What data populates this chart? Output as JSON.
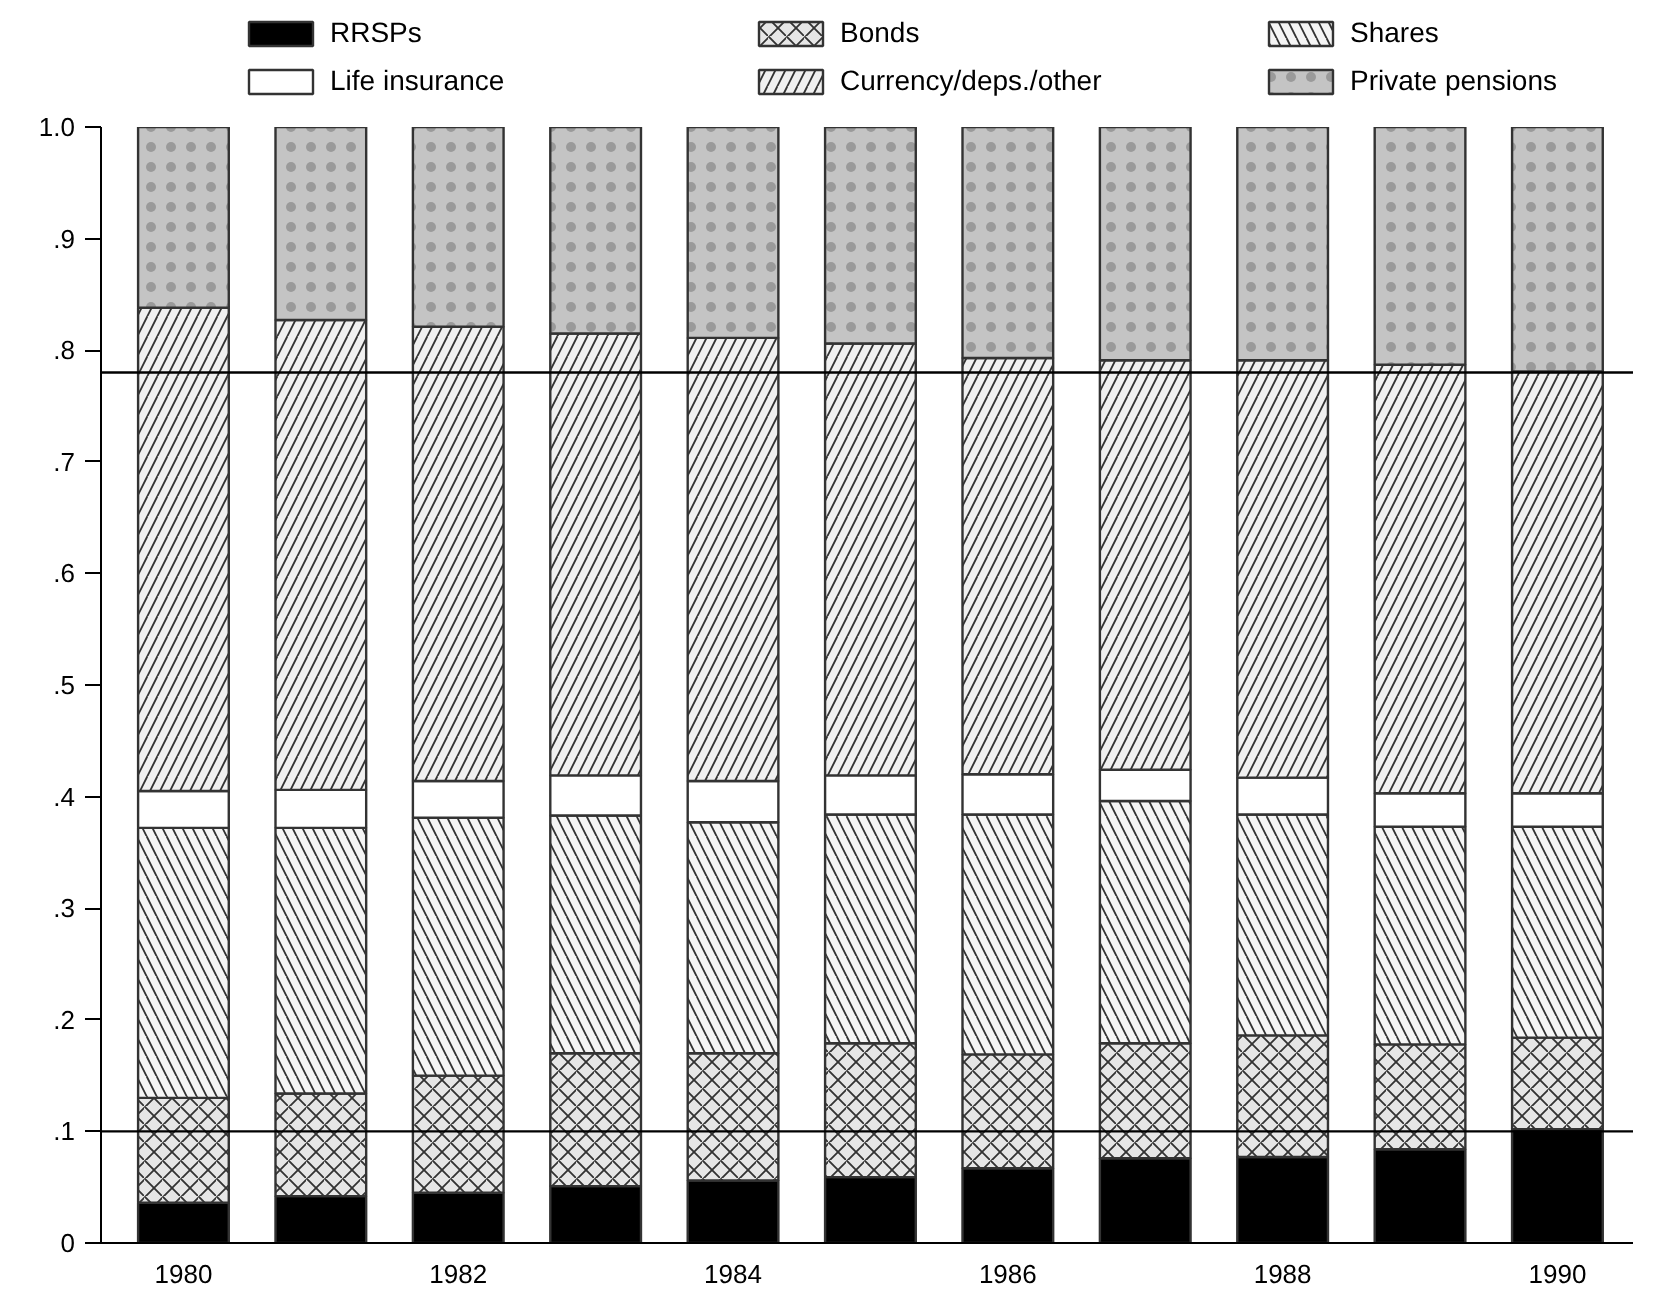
{
  "chart_data": {
    "type": "bar",
    "stacked": true,
    "categories": [
      "1980",
      null,
      "1982",
      null,
      "1984",
      null,
      "1986",
      null,
      "1988",
      null,
      "1990"
    ],
    "series": [
      {
        "name": "RRSPs",
        "color": "#000000",
        "values": [
          0.036,
          0.042,
          0.045,
          0.051,
          0.056,
          0.059,
          0.067,
          0.076,
          0.077,
          0.084,
          0.102
        ]
      },
      {
        "name": "Bonds",
        "color": "#e6e6e6",
        "values": [
          0.094,
          0.092,
          0.105,
          0.119,
          0.114,
          0.12,
          0.102,
          0.103,
          0.109,
          0.094,
          0.082
        ]
      },
      {
        "name": "Shares",
        "color": "#f5f5f5",
        "values": [
          0.242,
          0.238,
          0.231,
          0.213,
          0.207,
          0.205,
          0.215,
          0.217,
          0.198,
          0.195,
          0.189
        ]
      },
      {
        "name": "Life insurance",
        "color": "#ffffff",
        "values": [
          0.033,
          0.034,
          0.033,
          0.036,
          0.037,
          0.035,
          0.036,
          0.028,
          0.033,
          0.03,
          0.03
        ]
      },
      {
        "name": "Currency/deps./other",
        "color": "#f0f0f0",
        "values": [
          0.433,
          0.421,
          0.407,
          0.396,
          0.397,
          0.387,
          0.373,
          0.367,
          0.374,
          0.384,
          0.378
        ]
      },
      {
        "name": "Private pensions",
        "color": "#c4c4c4",
        "values": [
          0.162,
          0.173,
          0.179,
          0.185,
          0.189,
          0.194,
          0.207,
          0.209,
          0.209,
          0.213,
          0.219
        ]
      }
    ],
    "ylim": [
      0,
      1
    ],
    "yticks": [
      0,
      {
        "value": 0.1,
        "label": ".1"
      },
      {
        "value": 0.2,
        "label": ".2"
      },
      {
        "value": 0.3,
        "label": ".3"
      },
      {
        "value": 0.4,
        "label": ".4"
      },
      {
        "value": 0.5,
        "label": ".5"
      },
      {
        "value": 0.6,
        "label": ".6"
      },
      {
        "value": 0.7,
        "label": ".7"
      },
      {
        "value": 0.8,
        "label": ".8"
      },
      {
        "value": 0.9,
        "label": ".9"
      },
      {
        "value": 1.0,
        "label": "1.0"
      }
    ],
    "ref_lines": [
      {
        "axis": "y",
        "value": 0.1,
        "color": "#000000"
      },
      {
        "axis": "y",
        "value": 0.78,
        "color": "#000000"
      }
    ],
    "grid": false,
    "legend": "top"
  }
}
